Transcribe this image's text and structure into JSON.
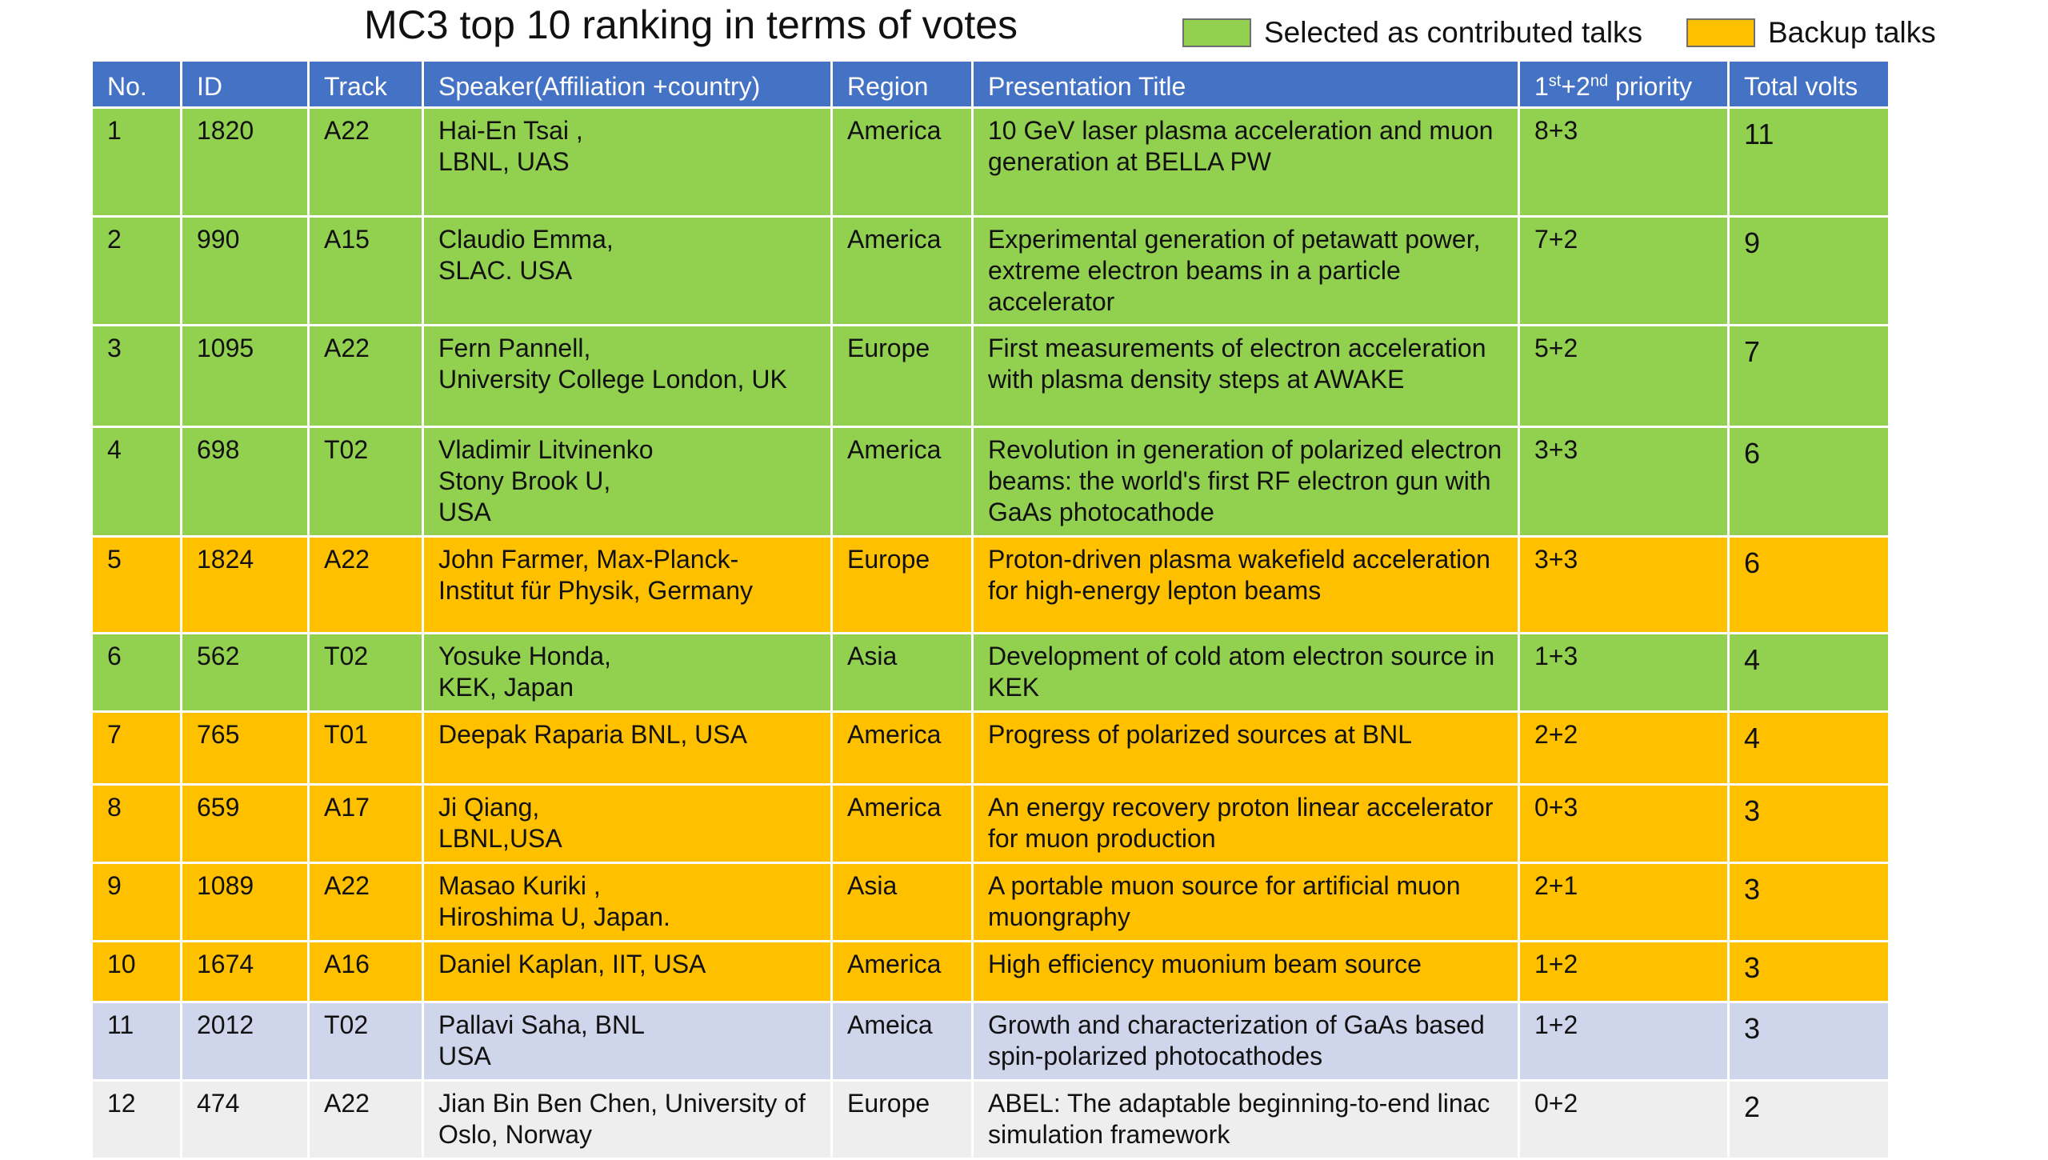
{
  "title": "MC3 top 10  ranking in terms of votes",
  "legend": {
    "selected": {
      "label": "Selected as contributed talks",
      "color": "#92d050"
    },
    "backup": {
      "label": "Backup talks",
      "color": "#ffc000"
    }
  },
  "colors": {
    "header": "#4472c4",
    "selected": "#92d050",
    "backup": "#ffc000",
    "other": "#cfd5ea",
    "plain": "#eeeeee"
  },
  "table": {
    "headers": {
      "no": "No.",
      "id": "ID",
      "track": "Track",
      "speaker": "Speaker(Affiliation +country)",
      "region": "Region",
      "title": "Presentation Title",
      "priority_base1": "1",
      "priority_sup1": "st",
      "priority_base2": "+2",
      "priority_sup2": "nd",
      "priority_tail": " priority",
      "total": "Total volts"
    },
    "rows": [
      {
        "no": "1",
        "id": "1820",
        "track": "A22",
        "speaker": "Hai-En Tsai ,\nLBNL, UAS",
        "region": "America",
        "title": "10 GeV laser plasma acceleration and muon generation at BELLA PW",
        "priority": "8+3",
        "total": "11",
        "status": "selected"
      },
      {
        "no": "2",
        "id": "990",
        "track": "A15",
        "speaker": "Claudio Emma,\nSLAC. USA",
        "region": "America",
        "title": "Experimental generation of petawatt power, extreme electron beams in a particle accelerator",
        "priority": "7+2",
        "total": "9",
        "status": "selected"
      },
      {
        "no": "3",
        "id": "1095",
        "track": "A22",
        "speaker": "Fern Pannell,\nUniversity College London, UK",
        "region": "Europe",
        "title": "First measurements of electron acceleration with plasma density steps at AWAKE",
        "priority": "5+2",
        "total": "7",
        "status": "selected"
      },
      {
        "no": "4",
        "id": " 698",
        "track": "T02",
        "speaker": "Vladimir Litvinenko\nStony Brook U,\nUSA",
        "region": "America",
        "title": "Revolution in generation of polarized electron beams: the world's first RF electron gun with GaAs photocathode",
        "priority": "3+3",
        "total": "6",
        "status": "selected"
      },
      {
        "no": "5",
        "id": "1824",
        "track": "A22",
        "speaker": "John Farmer, Max-Planck-\nInstitut für Physik, Germany",
        "region": "Europe",
        "title": "Proton-driven plasma wakefield acceleration for high-energy lepton beams",
        "priority": "3+3",
        "total": "6",
        "status": "backup"
      },
      {
        "no": "6",
        "id": "562",
        "track": "T02",
        "speaker": "Yosuke Honda,\nKEK, Japan",
        "region": "Asia",
        "title": "Development of cold atom electron source in KEK",
        "priority": "1+3",
        "total": "4",
        "status": "selected"
      },
      {
        "no": "7",
        "id": "765",
        "track": "T01",
        "speaker": "Deepak Raparia BNL, USA",
        "region": "America",
        "title": "Progress of polarized sources at BNL",
        "priority": "2+2",
        "total": "4",
        "status": "backup"
      },
      {
        "no": "8",
        "id": "659",
        "track": "A17",
        "speaker": "Ji Qiang,\nLBNL,USA",
        "region": "America",
        "title": "An energy recovery proton linear accelerator for muon production",
        "priority": "0+3",
        "total": "3",
        "status": "backup"
      },
      {
        "no": "9",
        "id": "1089",
        "track": "A22",
        "speaker": "Masao Kuriki ,\nHiroshima U, Japan.",
        "region": "Asia",
        "title": "A portable muon source for artificial muon muongraphy",
        "priority": "2+1",
        "total": "3",
        "status": "backup"
      },
      {
        "no": "10",
        "id": "1674",
        "track": "A16",
        "speaker": "Daniel Kaplan, IIT, USA",
        "region": "America",
        "title": "High efficiency muonium beam source",
        "priority": "1+2",
        "total": "3",
        "status": "backup"
      },
      {
        "no": "11",
        "id": "2012",
        "track": "T02",
        "speaker": "Pallavi Saha, BNL\nUSA",
        "region": "Ameica",
        "title": "Growth and characterization of GaAs based spin-polarized photocathodes",
        "priority": "1+2",
        "total": "3",
        "status": "other"
      },
      {
        "no": "12",
        "id": "474",
        "track": "A22",
        "speaker": "Jian Bin Ben Chen, University of Oslo, Norway",
        "region": "Europe",
        "title": "ABEL: The adaptable beginning-to-end linac simulation framework",
        "priority": "0+2",
        "total": "2",
        "status": "plain"
      }
    ]
  }
}
